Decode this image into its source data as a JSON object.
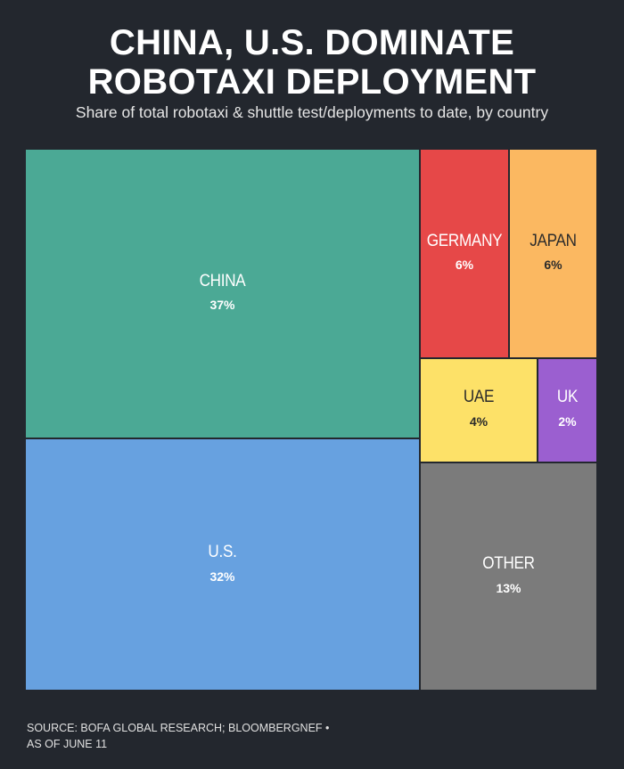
{
  "header": {
    "title_line_1": "CHINA, U.S. DOMINATE",
    "title_line_2": "ROBOTAXI DEPLOYMENT",
    "subtitle": "Share of total robotaxi & shuttle test/deployments to date, by country"
  },
  "chart_data": {
    "type": "treemap",
    "title": "CHINA, U.S. DOMINATE ROBOTAXI DEPLOYMENT",
    "subtitle": "Share of total robotaxi & shuttle test/deployments to date, by country",
    "unit": "%",
    "categories": [
      "CHINA",
      "U.S.",
      "GERMANY",
      "JAPAN",
      "UAE",
      "UK",
      "OTHER"
    ],
    "values": [
      37,
      32,
      6,
      6,
      4,
      2,
      13
    ],
    "value_labels": [
      "37%",
      "32%",
      "6%",
      "6%",
      "4%",
      "2%",
      "13%"
    ],
    "colors": [
      "#4ba995",
      "#67a1e0",
      "#e64848",
      "#fbb861",
      "#fde168",
      "#9b5fd0",
      "#7b7b7b"
    ]
  },
  "footer": {
    "source_line_1": "SOURCE: BOFA GLOBAL RESEARCH; BLOOMBERGNEF •",
    "source_line_2": "AS OF JUNE 11"
  }
}
